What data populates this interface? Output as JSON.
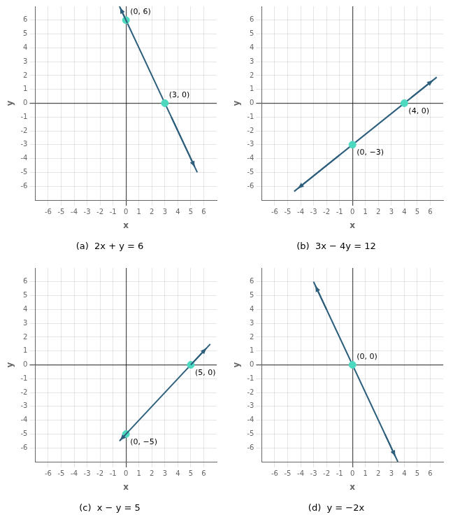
{
  "chart_data": [
    {
      "type": "scatter",
      "title": "(a)  2x + y = 6",
      "xlabel": "x",
      "ylabel": "y",
      "xlim": [
        -7,
        7
      ],
      "ylim": [
        -7,
        7
      ],
      "xticks": [
        -6,
        -5,
        -4,
        -3,
        -2,
        -1,
        0,
        1,
        2,
        3,
        4,
        5,
        6
      ],
      "yticks": [
        -6,
        -5,
        -4,
        -3,
        -2,
        -1,
        0,
        1,
        2,
        3,
        4,
        5,
        6
      ],
      "grid": true,
      "series": [
        {
          "type": "line",
          "color": "#2d5f7c",
          "x": [
            -0.5,
            5.5
          ],
          "values": [
            7.0,
            -5.0
          ],
          "arrows": [
            {
              "tail": [
                0.1,
                5.8
              ],
              "head": [
                -0.45,
                6.9
              ]
            },
            {
              "tail": [
                3.5,
                -1.0
              ],
              "head": [
                5.3,
                -4.6
              ]
            }
          ]
        },
        {
          "type": "scatter",
          "color": "#4dd9c0",
          "x": [
            0,
            3
          ],
          "values": [
            6,
            0
          ],
          "point_labels": [
            "(0, 6)",
            "(3, 0)"
          ]
        }
      ]
    },
    {
      "type": "scatter",
      "title": "(b)  3x − 4y = 12",
      "xlabel": "x",
      "ylabel": "y",
      "xlim": [
        -7,
        7
      ],
      "ylim": [
        -7,
        7
      ],
      "xticks": [
        -6,
        -5,
        -4,
        -3,
        -2,
        -1,
        0,
        1,
        2,
        3,
        4,
        5,
        6
      ],
      "yticks": [
        -6,
        -5,
        -4,
        -3,
        -2,
        -1,
        0,
        1,
        2,
        3,
        4,
        5,
        6
      ],
      "grid": true,
      "series": [
        {
          "type": "line",
          "color": "#2d5f7c",
          "x": [
            -4.5,
            6.5
          ],
          "values": [
            -6.375,
            1.875
          ],
          "arrows": [
            {
              "tail": [
                4.5,
                0.375
              ],
              "head": [
                6.2,
                1.65
              ]
            },
            {
              "tail": [
                -1.0,
                -3.75
              ],
              "head": [
                -4.2,
                -6.15
              ]
            }
          ]
        },
        {
          "type": "scatter",
          "color": "#4dd9c0",
          "x": [
            0,
            4
          ],
          "values": [
            -3,
            0
          ],
          "point_labels": [
            "(0, −3)",
            "(4, 0)"
          ]
        }
      ]
    },
    {
      "type": "scatter",
      "title": "(c)  x − y = 5",
      "xlabel": "x",
      "ylabel": "y",
      "xlim": [
        -7,
        7
      ],
      "ylim": [
        -7,
        7
      ],
      "xticks": [
        -6,
        -5,
        -4,
        -3,
        -2,
        -1,
        0,
        1,
        2,
        3,
        4,
        5,
        6
      ],
      "yticks": [
        -6,
        -5,
        -4,
        -3,
        -2,
        -1,
        0,
        1,
        2,
        3,
        4,
        5,
        6
      ],
      "grid": true,
      "series": [
        {
          "type": "line",
          "color": "#2d5f7c",
          "x": [
            -0.5,
            6.5
          ],
          "values": [
            -5.5,
            1.5
          ],
          "arrows": [
            {
              "tail": [
                5.0,
                0.0
              ],
              "head": [
                6.2,
                1.2
              ]
            },
            {
              "tail": [
                0.2,
                -4.8
              ],
              "head": [
                -0.45,
                -5.45
              ]
            }
          ]
        },
        {
          "type": "scatter",
          "color": "#4dd9c0",
          "x": [
            0,
            5
          ],
          "values": [
            -5,
            0
          ],
          "point_labels": [
            "(0, −5)",
            "(5, 0)"
          ]
        }
      ]
    },
    {
      "type": "scatter",
      "title": "(d)  y = −2x",
      "xlabel": "x",
      "ylabel": "y",
      "xlim": [
        -7,
        7
      ],
      "ylim": [
        -7,
        7
      ],
      "xticks": [
        -6,
        -5,
        -4,
        -3,
        -2,
        -1,
        0,
        1,
        2,
        3,
        4,
        5,
        6
      ],
      "yticks": [
        -6,
        -5,
        -4,
        -3,
        -2,
        -1,
        0,
        1,
        2,
        3,
        4,
        5,
        6
      ],
      "grid": true,
      "series": [
        {
          "type": "line",
          "color": "#2d5f7c",
          "x": [
            -3.0,
            3.5
          ],
          "values": [
            6.0,
            -7.0
          ],
          "arrows": [
            {
              "tail": [
                -2.0,
                4.0
              ],
              "head": [
                -2.85,
                5.7
              ]
            },
            {
              "tail": [
                2.5,
                -5.0
              ],
              "head": [
                3.3,
                -6.6
              ]
            }
          ]
        },
        {
          "type": "scatter",
          "color": "#4dd9c0",
          "x": [
            0
          ],
          "values": [
            0
          ],
          "point_labels": [
            "(0, 0)"
          ]
        }
      ]
    }
  ]
}
